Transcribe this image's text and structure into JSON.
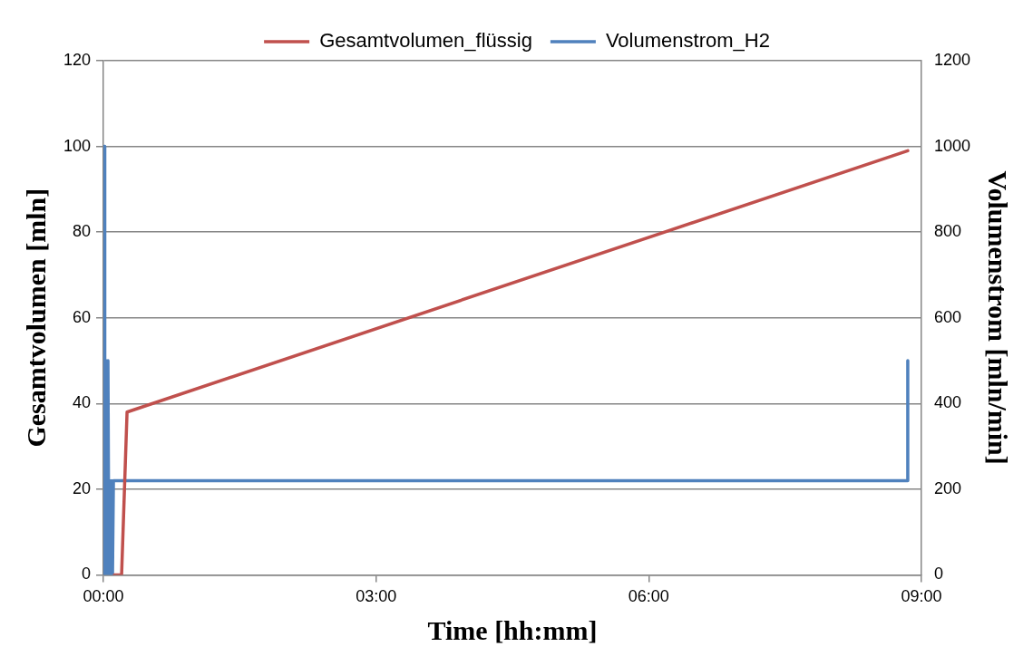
{
  "chart_data": {
    "type": "line",
    "xlabel": "Time [hh:mm]",
    "ylabel": "Gesamtvolumen [mln]",
    "y2label": "Volumenstrom [mln/min]",
    "xlim": [
      0,
      9
    ],
    "xticks": [
      {
        "value": 0,
        "label": "00:00"
      },
      {
        "value": 3,
        "label": "03:00"
      },
      {
        "value": 6,
        "label": "06:00"
      },
      {
        "value": 9,
        "label": "09:00"
      }
    ],
    "ylim": [
      0,
      120
    ],
    "yticks": [
      0,
      20,
      40,
      60,
      80,
      100,
      120
    ],
    "y2lim": [
      0,
      1200
    ],
    "y2ticks": [
      0,
      200,
      400,
      600,
      800,
      1000,
      1200
    ],
    "grid": "y",
    "legend": "top",
    "marker": "none",
    "line_style": "solid",
    "series": [
      {
        "name": "Gesamtvolumen_flüssig",
        "color": "#c0504d",
        "x": [
          0.12,
          0.2,
          0.26,
          8.85
        ],
        "values": [
          0,
          0,
          38,
          99
        ]
      },
      {
        "name": "Volumenstrom_H2",
        "color": "#4f81bd",
        "axis": "y2",
        "x": [
          0,
          0.01,
          0.015,
          0.03,
          0.04,
          0.05,
          0.06,
          0.07,
          0.08,
          0.09,
          0.1,
          0.11,
          8.85,
          8.85
        ],
        "values": [
          0,
          1000,
          0,
          500,
          0,
          500,
          0,
          220,
          0,
          220,
          0,
          220,
          220,
          500
        ]
      }
    ]
  }
}
